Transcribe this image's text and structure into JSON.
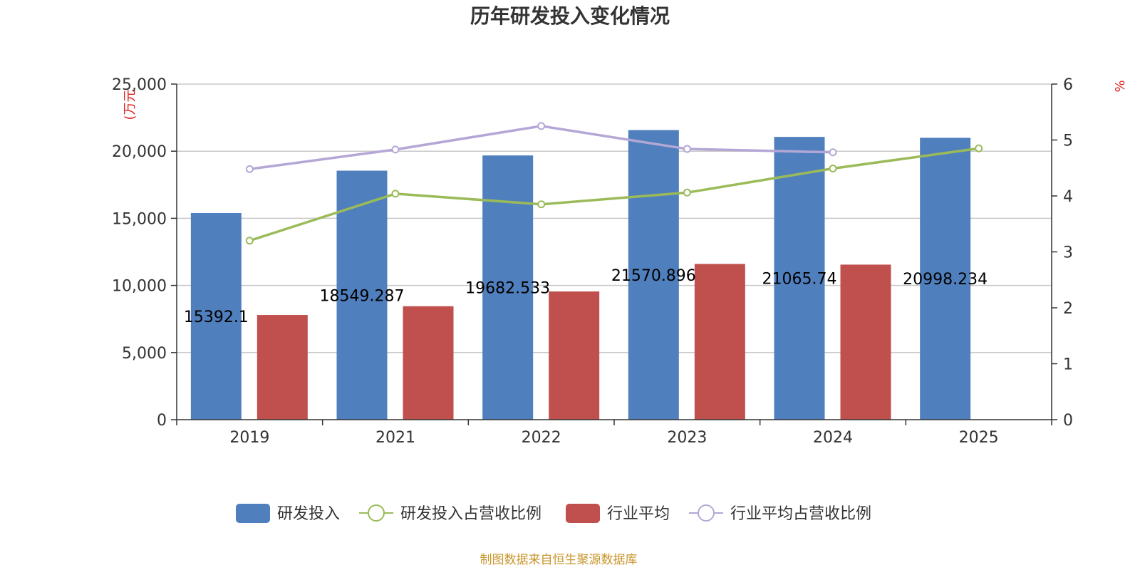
{
  "chart_data": {
    "type": "bar",
    "title": "历年研发投入变化情况",
    "categories": [
      "2019",
      "2021",
      "2022",
      "2023",
      "2024",
      "2025"
    ],
    "y_left": {
      "unit_label": "(万元",
      "ylim": [
        0,
        25000
      ],
      "ticks": [
        "0",
        "5,000",
        "10,000",
        "15,000",
        "20,000",
        "25,000"
      ],
      "tick_values": [
        0,
        5000,
        10000,
        15000,
        20000,
        25000
      ]
    },
    "y_right": {
      "unit_label": "%",
      "ylim": [
        0,
        6
      ],
      "ticks": [
        "0",
        "1",
        "2",
        "3",
        "4",
        "5",
        "6"
      ],
      "tick_values": [
        0,
        1,
        2,
        3,
        4,
        5,
        6
      ]
    },
    "grid": true,
    "legend_position": "bottom",
    "series": [
      {
        "name": "研发投入",
        "type": "bar",
        "axis": "left",
        "color": "#4f7fbd",
        "values": [
          15392.1,
          18549.287,
          19682.533,
          21570.896,
          21065.74,
          20998.234
        ],
        "data_labels": [
          "15392.1",
          "18549.287",
          "19682.533",
          "21570.896",
          "21065.74",
          "20998.234"
        ]
      },
      {
        "name": "研发投入占营收比例",
        "type": "line",
        "axis": "right",
        "color": "#9bbb59",
        "values": [
          3.2,
          4.04,
          3.85,
          4.06,
          4.49,
          4.85
        ]
      },
      {
        "name": "行业平均",
        "type": "bar",
        "axis": "left",
        "color": "#c0504d",
        "values": [
          7800,
          8450,
          9550,
          11600,
          11550,
          null
        ]
      },
      {
        "name": "行业平均占营收比例",
        "type": "line",
        "axis": "right",
        "color": "#b4a7d6",
        "values": [
          4.48,
          4.83,
          5.25,
          4.84,
          4.78,
          null
        ]
      }
    ]
  },
  "footer": {
    "source": "制图数据来自恒生聚源数据库"
  }
}
